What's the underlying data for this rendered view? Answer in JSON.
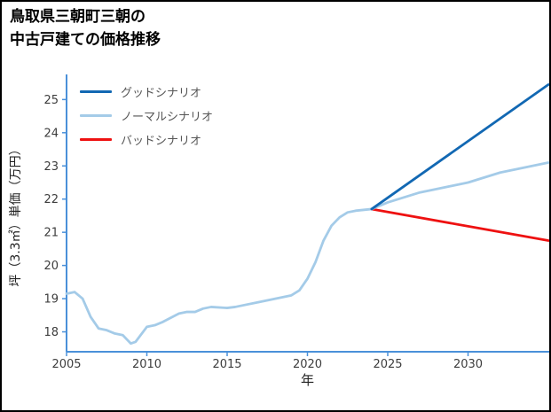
{
  "title": {
    "line1": "鳥取県三朝町三朝の",
    "line2": "中古戸建ての価格推移"
  },
  "chart_data": {
    "type": "line",
    "title": "鳥取県三朝町三朝の中古戸建ての価格推移",
    "xlabel": "年",
    "ylabel": "坪（3.3㎡）単価（万円）",
    "xlim": [
      2005,
      2035
    ],
    "ylim": [
      17.4,
      25.65
    ],
    "x_ticks": [
      2005,
      2010,
      2015,
      2020,
      2025,
      2030
    ],
    "y_ticks": [
      18,
      19,
      20,
      21,
      22,
      23,
      24,
      25
    ],
    "grid": false,
    "legend_position": "upper-left",
    "axis_color": "#4a90d9",
    "tick_label_color": "#3d3d3d",
    "series": [
      {
        "id": "good",
        "name": "グッドシナリオ",
        "color": "#1268b3",
        "x": [
          2024,
          2035
        ],
        "values": [
          21.7,
          25.45
        ]
      },
      {
        "id": "normal",
        "name": "ノーマルシナリオ",
        "color": "#a4cbe8",
        "x": [
          2024,
          2025,
          2026,
          2027,
          2028,
          2029,
          2030,
          2031,
          2032,
          2033,
          2034,
          2035
        ],
        "values": [
          21.7,
          21.9,
          22.05,
          22.2,
          22.3,
          22.4,
          22.5,
          22.65,
          22.8,
          22.9,
          23.0,
          23.1
        ]
      },
      {
        "id": "bad",
        "name": "バッドシナリオ",
        "color": "#ee1111",
        "x": [
          2024,
          2035
        ],
        "values": [
          21.7,
          20.75
        ]
      },
      {
        "id": "history",
        "color": "#a4cbe8",
        "in_legend": false,
        "x": [
          2005,
          2005.5,
          2006,
          2006.5,
          2007,
          2007.5,
          2008,
          2008.5,
          2009,
          2009.3,
          2010,
          2010.5,
          2011,
          2012,
          2012.5,
          2013,
          2013.5,
          2014,
          2015,
          2015.5,
          2016,
          2017,
          2018,
          2019,
          2019.5,
          2020,
          2020.5,
          2021,
          2021.5,
          2022,
          2022.5,
          2023,
          2024
        ],
        "values": [
          19.15,
          19.2,
          19.0,
          18.45,
          18.1,
          18.05,
          17.95,
          17.9,
          17.65,
          17.7,
          18.15,
          18.2,
          18.3,
          18.55,
          18.6,
          18.6,
          18.7,
          18.75,
          18.72,
          18.75,
          18.8,
          18.9,
          19.0,
          19.1,
          19.25,
          19.6,
          20.1,
          20.75,
          21.2,
          21.45,
          21.6,
          21.65,
          21.7
        ]
      }
    ]
  }
}
